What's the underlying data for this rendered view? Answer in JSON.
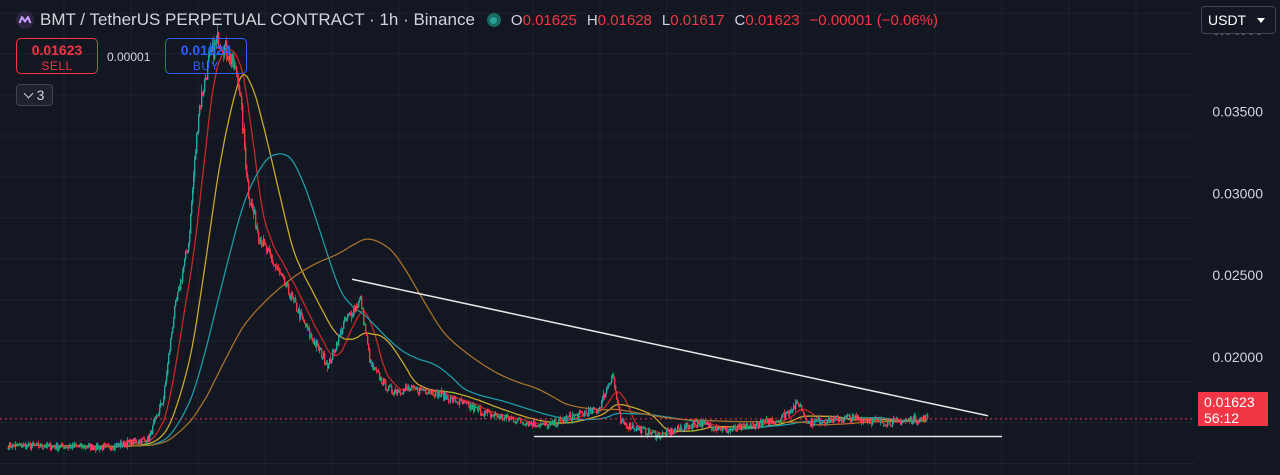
{
  "header": {
    "title": "BMT / TetherUS PERPETUAL CONTRACT · 1h · Binance",
    "ohlc": [
      {
        "key": "O",
        "value": "0.01625"
      },
      {
        "key": "H",
        "value": "0.01628"
      },
      {
        "key": "L",
        "value": "0.01617"
      },
      {
        "key": "C",
        "value": "0.01623"
      }
    ],
    "change": "−0.00001 (−0.06%)"
  },
  "trade": {
    "sell_price": "0.01623",
    "sell_label": "SELL",
    "spread": "0.00001",
    "buy_price": "0.01624",
    "buy_label": "BUY"
  },
  "indicators_toggle": {
    "count": "3"
  },
  "currency": {
    "selected": "USDT"
  },
  "last_price": {
    "value": "0.01623",
    "countdown": "56:12"
  },
  "colors": {
    "background": "#131722",
    "up": "#26a69a",
    "down": "#f23645",
    "ma_red": "#c62828",
    "ma_yellow": "#c8a82c",
    "ma_teal": "#1e9aa8",
    "ma_orange": "#a6702a",
    "trendline": "#e6e6e6"
  },
  "chart_data": {
    "type": "candlestick",
    "ylim": [
      0.0128,
      0.0418
    ],
    "y_ticks": [
      "0.04000",
      "0.03500",
      "0.03000",
      "0.02500",
      "0.02000"
    ],
    "y_tick_values": [
      0.04,
      0.035,
      0.03,
      0.025,
      0.02
    ],
    "last_price": 0.01623,
    "price_waypoints": [
      [
        0,
        0.0146
      ],
      [
        100,
        0.0145
      ],
      [
        140,
        0.015
      ],
      [
        155,
        0.0175
      ],
      [
        165,
        0.0225
      ],
      [
        180,
        0.027
      ],
      [
        190,
        0.035
      ],
      [
        200,
        0.038
      ],
      [
        210,
        0.0395
      ],
      [
        220,
        0.0385
      ],
      [
        230,
        0.037
      ],
      [
        240,
        0.03
      ],
      [
        250,
        0.0275
      ],
      [
        262,
        0.026
      ],
      [
        280,
        0.024
      ],
      [
        300,
        0.0215
      ],
      [
        320,
        0.0195
      ],
      [
        335,
        0.022
      ],
      [
        352,
        0.0235
      ],
      [
        362,
        0.0195
      ],
      [
        380,
        0.018
      ],
      [
        420,
        0.018
      ],
      [
        440,
        0.0175
      ],
      [
        480,
        0.0165
      ],
      [
        520,
        0.016
      ],
      [
        540,
        0.0158
      ],
      [
        560,
        0.0163
      ],
      [
        590,
        0.0168
      ],
      [
        604,
        0.019
      ],
      [
        612,
        0.016
      ],
      [
        650,
        0.0152
      ],
      [
        690,
        0.016
      ],
      [
        720,
        0.0155
      ],
      [
        770,
        0.0162
      ],
      [
        790,
        0.0172
      ],
      [
        800,
        0.016
      ],
      [
        840,
        0.0163
      ],
      [
        880,
        0.016
      ],
      [
        920,
        0.0163
      ]
    ],
    "trendlines": [
      {
        "from": [
          352,
          0.02475
        ],
        "to": [
          988,
          0.01642
        ]
      },
      {
        "from": [
          534,
          0.01515
        ],
        "to": [
          1002,
          0.01515
        ]
      }
    ]
  }
}
